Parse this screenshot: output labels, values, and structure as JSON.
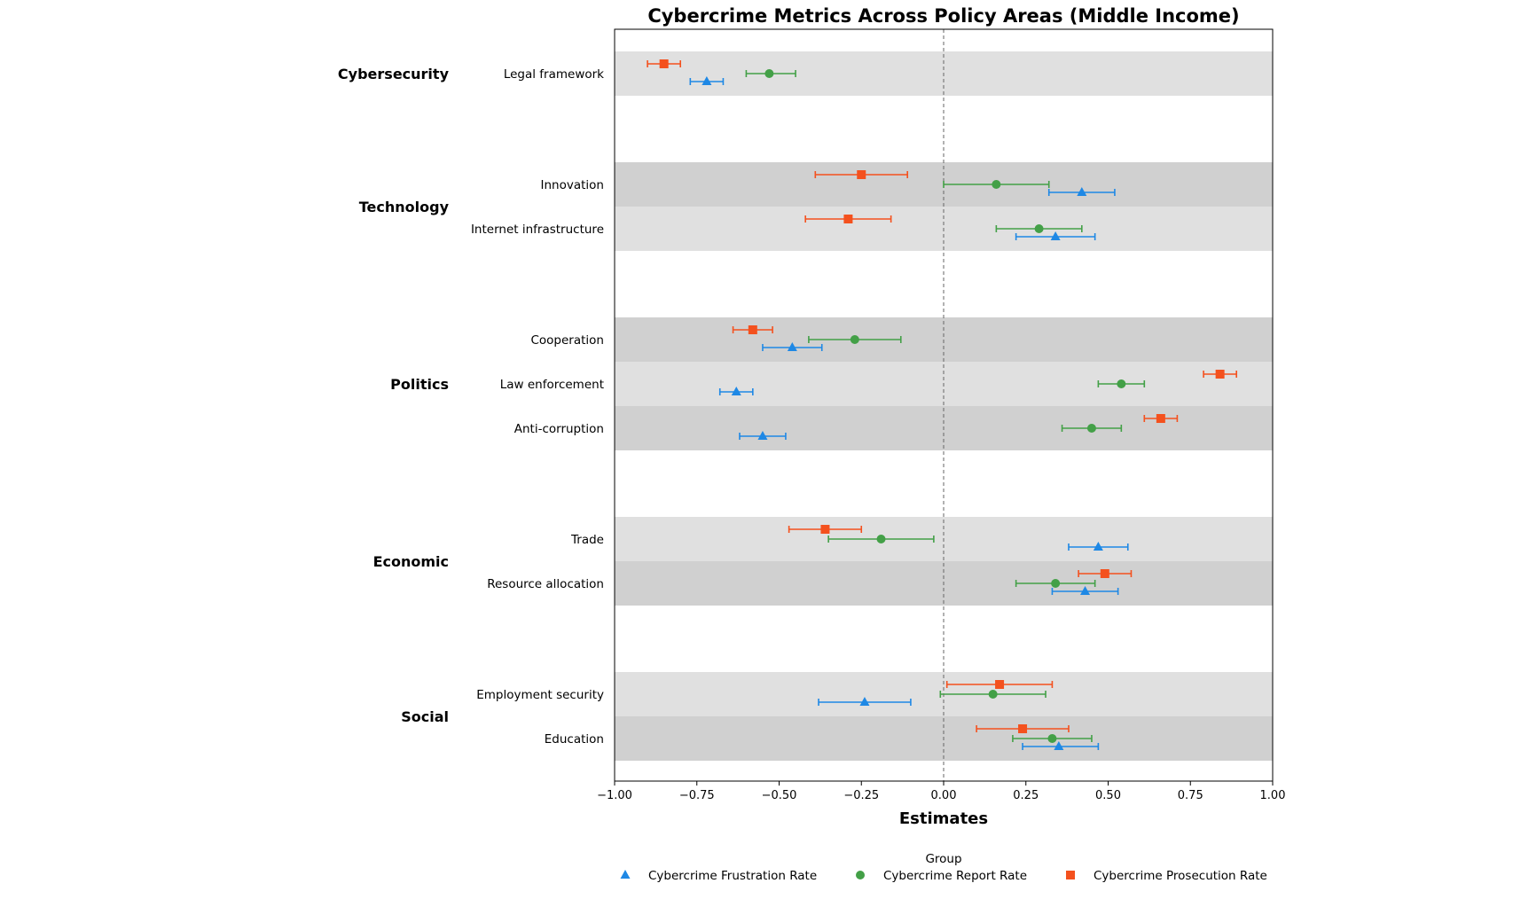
{
  "chart_data": {
    "type": "scatter",
    "subtype": "forest-plot with horizontal error bars",
    "title": "Cybercrime Metrics Across Policy Areas (Middle Income)",
    "xlabel": "Estimates",
    "ylabel": "",
    "xlim": [
      -1.0,
      1.0
    ],
    "x_ticks": [
      "−1.00",
      "−0.75",
      "−0.50",
      "−0.25",
      "0.00",
      "0.25",
      "0.50",
      "0.75",
      "1.00"
    ],
    "reference_line": 0,
    "grid": false,
    "legend": {
      "title": "Group",
      "placement": "bottom-center",
      "entries": [
        {
          "name": "Cybercrime Frustration Rate",
          "color": "#1e88e5",
          "marker": "triangle"
        },
        {
          "name": "Cybercrime Report Rate",
          "color": "#43a047",
          "marker": "circle"
        },
        {
          "name": "Cybercrime Prosecution Rate",
          "color": "#f4511e",
          "marker": "square"
        }
      ]
    },
    "groups": [
      {
        "name": "Cybersecurity",
        "rows": [
          {
            "label": "Legal framework",
            "frustration": {
              "est": -0.72,
              "lo": -0.77,
              "hi": -0.67
            },
            "report": {
              "est": -0.53,
              "lo": -0.6,
              "hi": -0.45
            },
            "prosecution": {
              "est": -0.85,
              "lo": -0.9,
              "hi": -0.8
            }
          }
        ]
      },
      {
        "name": "Technology",
        "rows": [
          {
            "label": "Innovation",
            "frustration": {
              "est": 0.42,
              "lo": 0.32,
              "hi": 0.52
            },
            "report": {
              "est": 0.16,
              "lo": 0.0,
              "hi": 0.32
            },
            "prosecution": {
              "est": -0.25,
              "lo": -0.39,
              "hi": -0.11
            }
          },
          {
            "label": "Internet infrastructure",
            "frustration": {
              "est": 0.34,
              "lo": 0.22,
              "hi": 0.46
            },
            "report": {
              "est": 0.29,
              "lo": 0.16,
              "hi": 0.42
            },
            "prosecution": {
              "est": -0.29,
              "lo": -0.42,
              "hi": -0.16
            }
          }
        ]
      },
      {
        "name": "Politics",
        "rows": [
          {
            "label": "Cooperation",
            "frustration": {
              "est": -0.46,
              "lo": -0.55,
              "hi": -0.37
            },
            "report": {
              "est": -0.27,
              "lo": -0.41,
              "hi": -0.13
            },
            "prosecution": {
              "est": -0.58,
              "lo": -0.64,
              "hi": -0.52
            }
          },
          {
            "label": "Law enforcement",
            "frustration": {
              "est": -0.63,
              "lo": -0.68,
              "hi": -0.58
            },
            "report": {
              "est": 0.54,
              "lo": 0.47,
              "hi": 0.61
            },
            "prosecution": {
              "est": 0.84,
              "lo": 0.79,
              "hi": 0.89
            }
          },
          {
            "label": "Anti-corruption",
            "frustration": {
              "est": -0.55,
              "lo": -0.62,
              "hi": -0.48
            },
            "report": {
              "est": 0.45,
              "lo": 0.36,
              "hi": 0.54
            },
            "prosecution": {
              "est": 0.66,
              "lo": 0.61,
              "hi": 0.71
            }
          }
        ]
      },
      {
        "name": "Economic",
        "rows": [
          {
            "label": "Trade",
            "frustration": {
              "est": 0.47,
              "lo": 0.38,
              "hi": 0.56
            },
            "report": {
              "est": -0.19,
              "lo": -0.35,
              "hi": -0.03
            },
            "prosecution": {
              "est": -0.36,
              "lo": -0.47,
              "hi": -0.25
            }
          },
          {
            "label": "Resource allocation",
            "frustration": {
              "est": 0.43,
              "lo": 0.33,
              "hi": 0.53
            },
            "report": {
              "est": 0.34,
              "lo": 0.22,
              "hi": 0.46
            },
            "prosecution": {
              "est": 0.49,
              "lo": 0.41,
              "hi": 0.57
            }
          }
        ]
      },
      {
        "name": "Social",
        "rows": [
          {
            "label": "Employment security",
            "frustration": {
              "est": -0.24,
              "lo": -0.38,
              "hi": -0.1
            },
            "report": {
              "est": 0.15,
              "lo": -0.01,
              "hi": 0.31
            },
            "prosecution": {
              "est": 0.17,
              "lo": 0.01,
              "hi": 0.33
            }
          },
          {
            "label": "Education",
            "frustration": {
              "est": 0.35,
              "lo": 0.24,
              "hi": 0.47
            },
            "report": {
              "est": 0.33,
              "lo": 0.21,
              "hi": 0.45
            },
            "prosecution": {
              "est": 0.24,
              "lo": 0.1,
              "hi": 0.38
            }
          }
        ]
      }
    ]
  },
  "colors": {
    "frustration": "#1e88e5",
    "report": "#43a047",
    "prosecution": "#f4511e",
    "band_light": "#e0e0e0",
    "band_dark": "#d0d0d0"
  }
}
